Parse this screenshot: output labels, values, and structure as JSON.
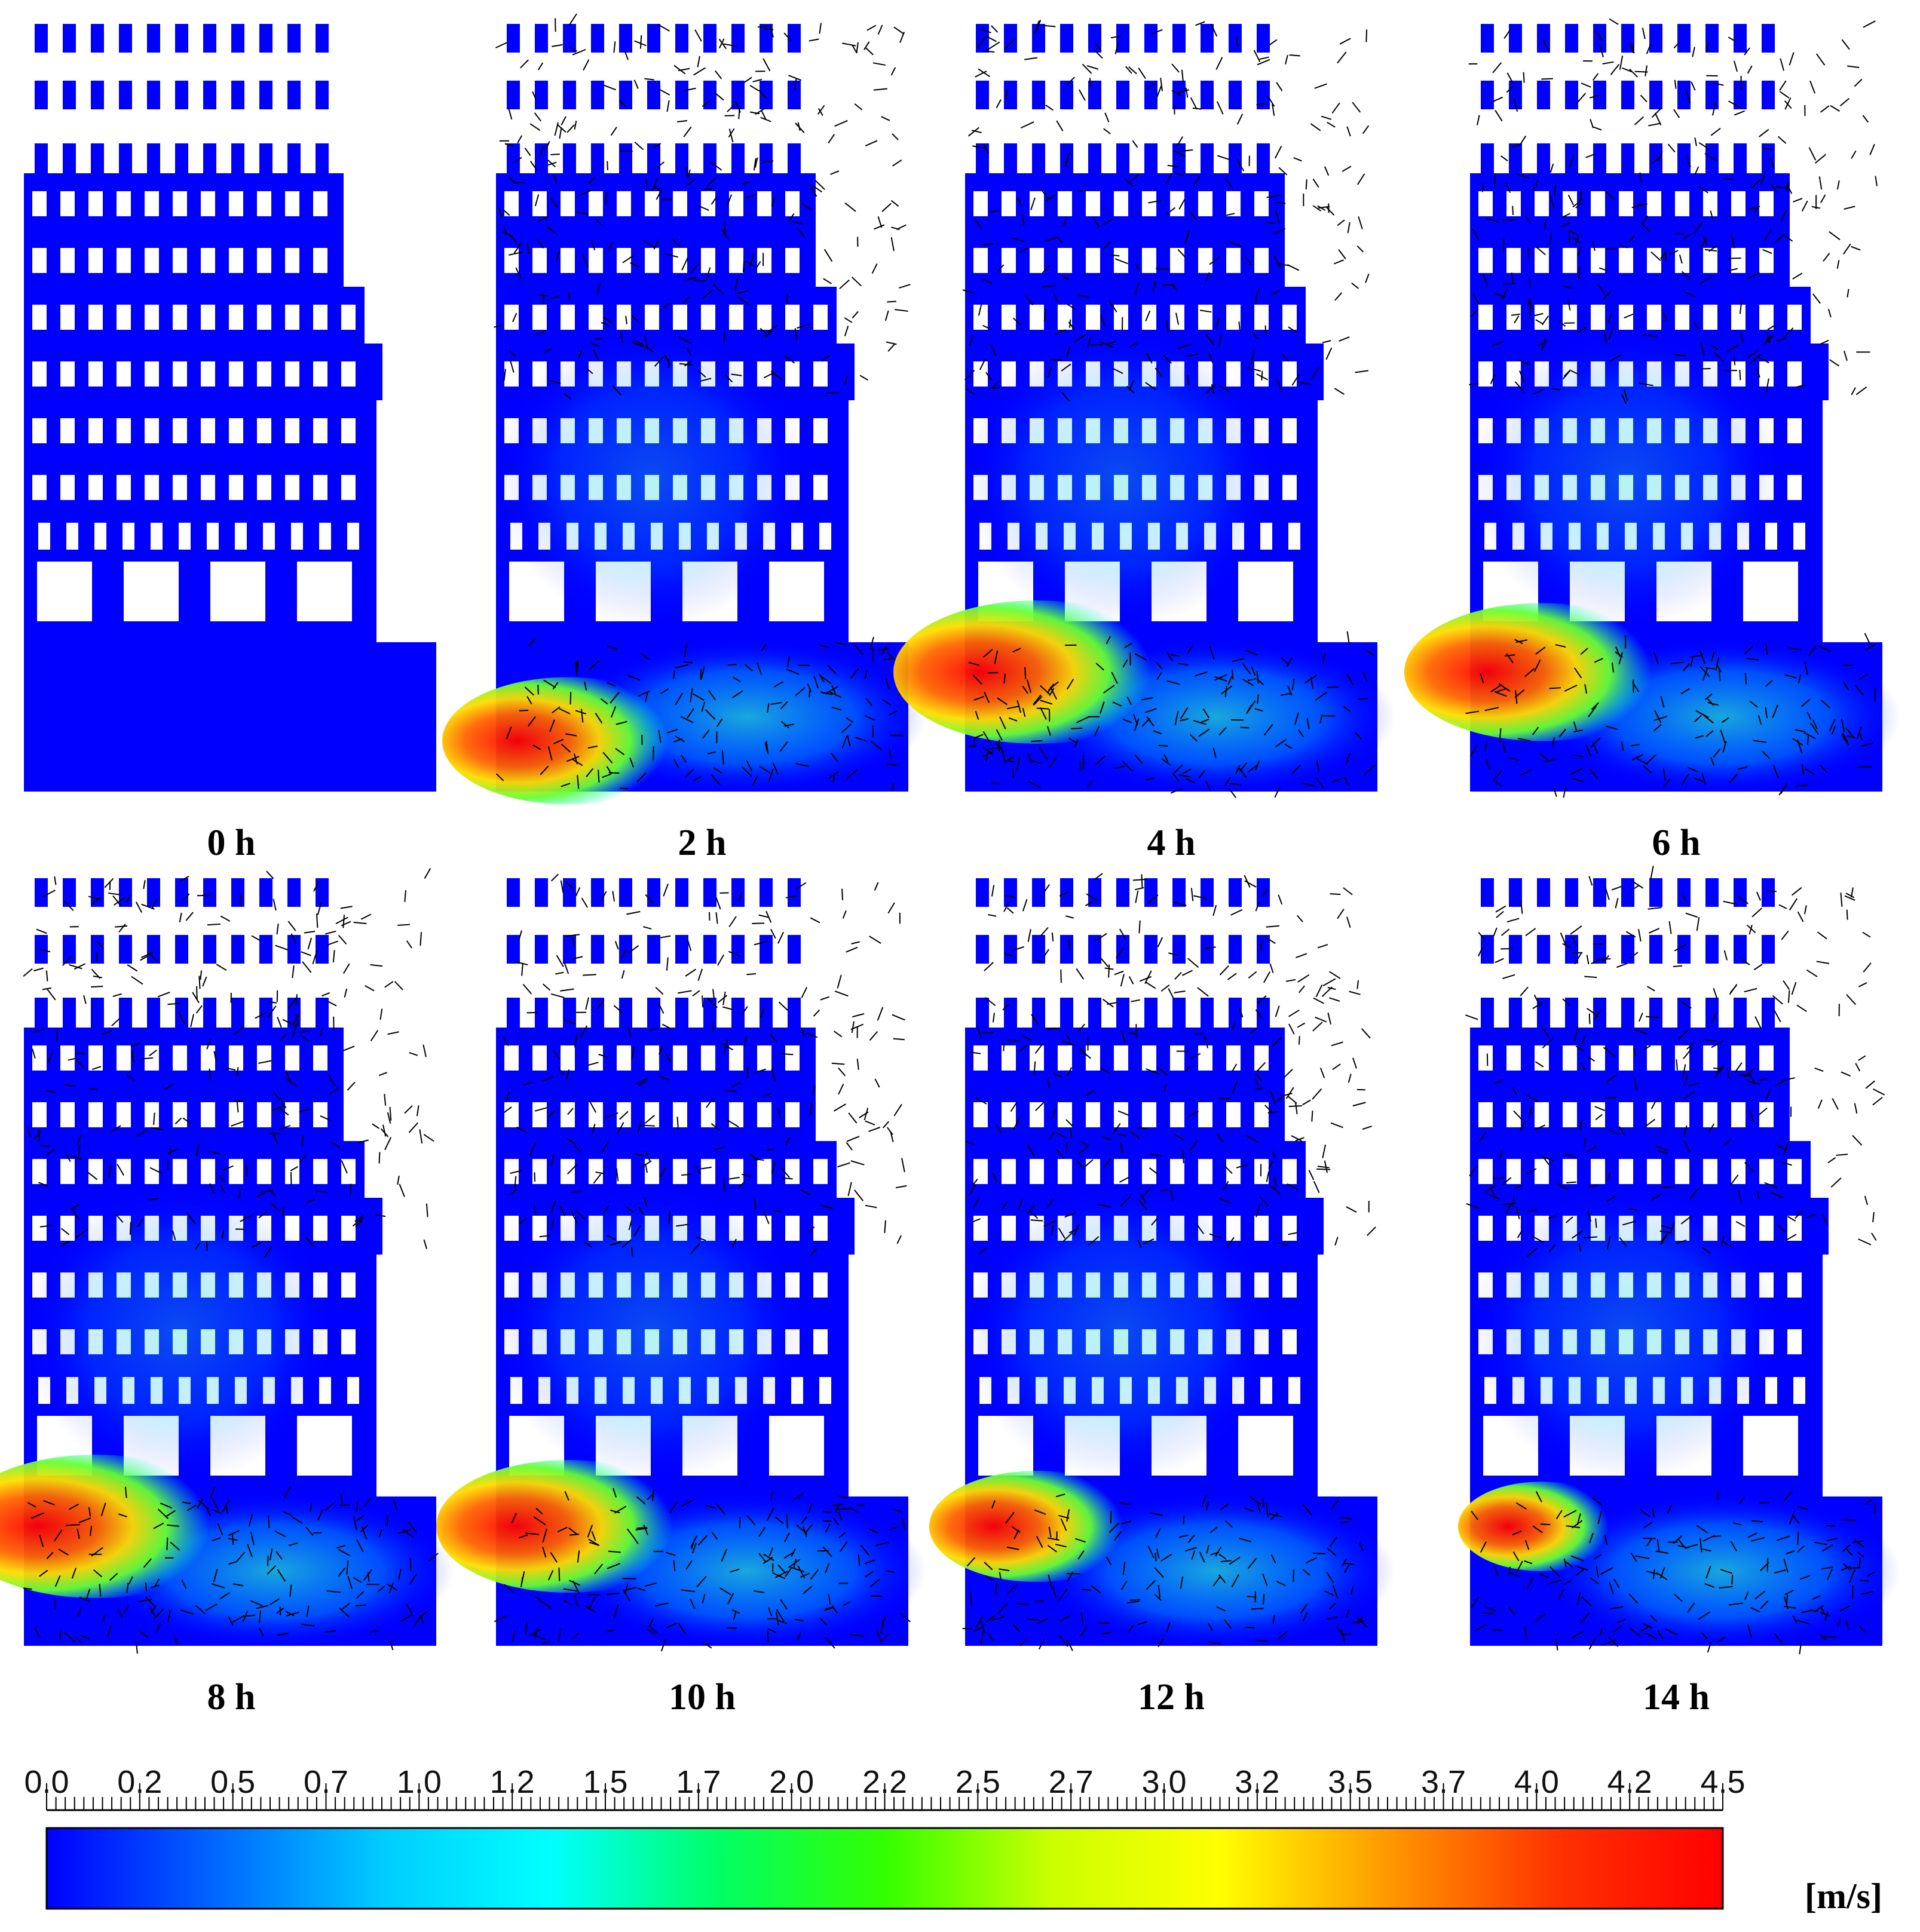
{
  "figure": {
    "panels": [
      {
        "label": "0 h",
        "state": "geometry",
        "jet": []
      },
      {
        "label": "2 h",
        "state": "flow",
        "jet": [
          {
            "region": "bottom-left",
            "strength": 0.85
          }
        ]
      },
      {
        "label": "4 h",
        "state": "flow",
        "jet": [
          {
            "region": "left-upper",
            "strength": 1.0
          }
        ]
      },
      {
        "label": "6 h",
        "state": "flow",
        "jet": [
          {
            "region": "left-upper",
            "strength": 0.95
          }
        ]
      },
      {
        "label": "8 h",
        "state": "flow",
        "jet": [
          {
            "region": "left-upper",
            "strength": 1.0
          }
        ]
      },
      {
        "label": "10 h",
        "state": "flow",
        "jet": [
          {
            "region": "left-upper",
            "strength": 0.9
          }
        ]
      },
      {
        "label": "12 h",
        "state": "flow",
        "jet": [
          {
            "region": "left-upper",
            "strength": 0.7
          }
        ]
      },
      {
        "label": "14 h",
        "state": "flow",
        "jet": [
          {
            "region": "left-upper",
            "strength": 0.5
          }
        ]
      }
    ],
    "colorbar": {
      "ticks": [
        "0.0",
        "0.2",
        "0.5",
        "0.7",
        "1.0",
        "1.2",
        "1.5",
        "1.7",
        "2.0",
        "2.2",
        "2.5",
        "2.7",
        "3.0",
        "3.2",
        "3.5",
        "3.7",
        "4.0",
        "4.2",
        "4.5"
      ],
      "min": 0.0,
      "max": 4.5,
      "unit": "[m/s]",
      "colors": [
        "#0000ff",
        "#0066ff",
        "#00ccff",
        "#00ffff",
        "#00ff66",
        "#33ff00",
        "#ccff00",
        "#ffff00",
        "#ff9900",
        "#ff3300",
        "#ff0000"
      ]
    },
    "palette": {
      "solid": "#0000ff",
      "vector": "#000000"
    }
  }
}
